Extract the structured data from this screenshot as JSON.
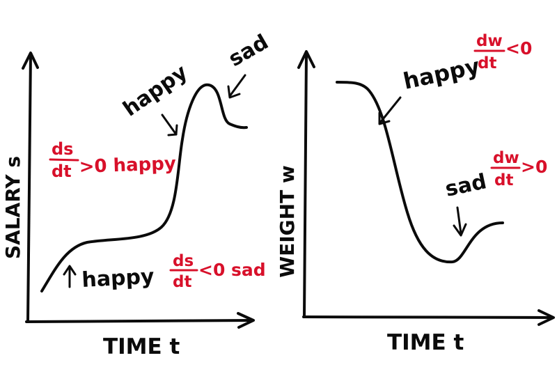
{
  "colors": {
    "ink": "#0b0b0b",
    "accent": "#d8102a",
    "background": "#ffffff"
  },
  "left_graph": {
    "y_axis_label": "SALARY s",
    "x_axis_label": "TIME t",
    "annotations": {
      "happy_bottom": "happy",
      "happy_top": "happy",
      "sad_top": "sad",
      "deriv_pos_num": "ds",
      "deriv_pos_den": "dt",
      "deriv_pos_rel": ">0 happy",
      "deriv_neg_num": "ds",
      "deriv_neg_den": "dt",
      "deriv_neg_rel": "<0 sad"
    }
  },
  "right_graph": {
    "y_axis_label": "WEIGHT w",
    "x_axis_label": "TIME t",
    "annotations": {
      "happy_label": "happy",
      "happy_deriv_num": "dw",
      "happy_deriv_den": "dt",
      "happy_deriv_rel": "<0",
      "sad_label": "sad",
      "sad_deriv_num": "dw",
      "sad_deriv_den": "dt",
      "sad_deriv_rel": ">0"
    }
  }
}
